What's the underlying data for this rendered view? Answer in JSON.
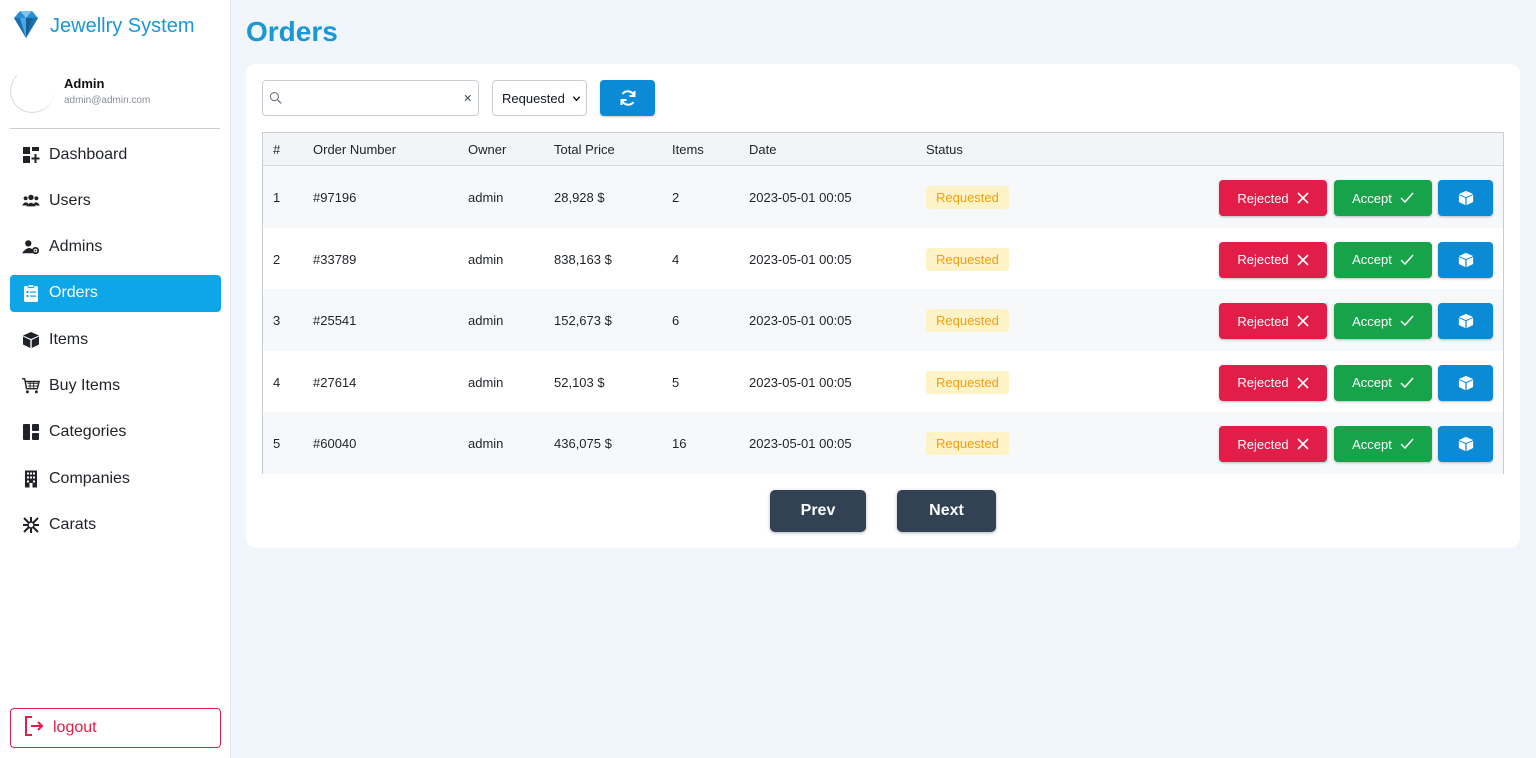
{
  "app": {
    "title": "Jewellry System"
  },
  "profile": {
    "name": "Admin",
    "email": "admin@admin.com"
  },
  "sidebar": {
    "items": [
      {
        "label": "Dashboard",
        "icon": "dashboard-icon"
      },
      {
        "label": "Users",
        "icon": "users-icon"
      },
      {
        "label": "Admins",
        "icon": "admin-gear-icon"
      },
      {
        "label": "Orders",
        "icon": "clipboard-icon",
        "active": true
      },
      {
        "label": "Items",
        "icon": "box-icon"
      },
      {
        "label": "Buy Items",
        "icon": "cart-icon"
      },
      {
        "label": "Categories",
        "icon": "categories-icon"
      },
      {
        "label": "Companies",
        "icon": "building-icon"
      },
      {
        "label": "Carats",
        "icon": "carat-icon"
      }
    ],
    "logout_label": "logout"
  },
  "page": {
    "title": "Orders"
  },
  "filters": {
    "search_value": "",
    "status_selected": "Requested"
  },
  "table": {
    "headers": [
      "#",
      "Order Number",
      "Owner",
      "Total Price",
      "Items",
      "Date",
      "Status"
    ],
    "rows": [
      {
        "idx": "1",
        "order": "#97196",
        "owner": "admin",
        "price": "28,928 $",
        "items": "2",
        "date": "2023-05-01 00:05",
        "status": "Requested"
      },
      {
        "idx": "2",
        "order": "#33789",
        "owner": "admin",
        "price": "838,163 $",
        "items": "4",
        "date": "2023-05-01 00:05",
        "status": "Requested"
      },
      {
        "idx": "3",
        "order": "#25541",
        "owner": "admin",
        "price": "152,673 $",
        "items": "6",
        "date": "2023-05-01 00:05",
        "status": "Requested"
      },
      {
        "idx": "4",
        "order": "#27614",
        "owner": "admin",
        "price": "52,103 $",
        "items": "5",
        "date": "2023-05-01 00:05",
        "status": "Requested"
      },
      {
        "idx": "5",
        "order": "#60040",
        "owner": "admin",
        "price": "436,075 $",
        "items": "16",
        "date": "2023-05-01 00:05",
        "status": "Requested"
      }
    ],
    "actions": {
      "reject_label": "Rejected",
      "accept_label": "Accept"
    }
  },
  "pager": {
    "prev_label": "Prev",
    "next_label": "Next"
  },
  "colors": {
    "brand": "#1a97d6",
    "active": "#0ea5e9",
    "reject": "#e11d48",
    "accept": "#16a34a",
    "info": "#0b8bd6",
    "pager": "#334155"
  }
}
